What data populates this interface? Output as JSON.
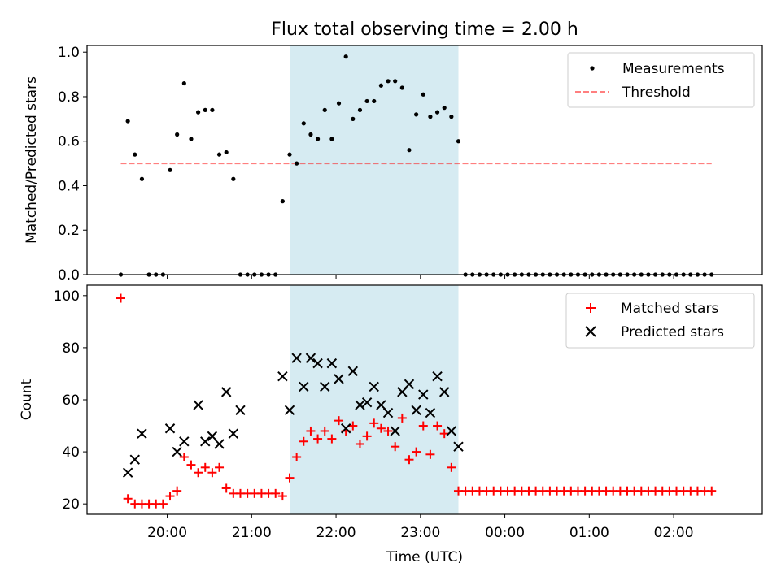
{
  "figure": {
    "title": "Flux total observing time = 2.00 h",
    "xlabel": "Time (UTC)"
  },
  "chart_data": [
    {
      "type": "scatter",
      "ylabel": "Matched/Predicted stars",
      "ylim": [
        0,
        1.03
      ],
      "yticks": [
        "0.0",
        "0.2",
        "0.4",
        "0.6",
        "0.8",
        "1.0"
      ],
      "highlight": {
        "start": "21:27",
        "end": "23:27",
        "color": "#add8e6"
      },
      "legend": {
        "placement": "top-right",
        "entries": [
          "Measurements",
          "Threshold"
        ]
      },
      "threshold": {
        "name": "Threshold",
        "value": 0.5,
        "x": [
          "19:27",
          "02:27"
        ],
        "color": "#ff0000"
      },
      "series": [
        {
          "name": "Measurements",
          "marker": "dot",
          "color": "#000000",
          "x": [
            "19:27",
            "19:32",
            "19:37",
            "19:42",
            "19:47",
            "19:52",
            "19:57",
            "20:02",
            "20:07",
            "20:12",
            "20:17",
            "20:22",
            "20:27",
            "20:32",
            "20:37",
            "20:42",
            "20:47",
            "20:52",
            "20:57",
            "21:02",
            "21:07",
            "21:12",
            "21:17",
            "21:22",
            "21:27",
            "21:32",
            "21:37",
            "21:42",
            "21:47",
            "21:52",
            "21:57",
            "22:02",
            "22:07",
            "22:12",
            "22:17",
            "22:22",
            "22:27",
            "22:32",
            "22:37",
            "22:42",
            "22:47",
            "22:52",
            "22:57",
            "23:02",
            "23:07",
            "23:12",
            "23:17",
            "23:22",
            "23:27",
            "23:32",
            "23:37",
            "23:42",
            "23:47",
            "23:52",
            "23:57",
            "00:02",
            "00:07",
            "00:12",
            "00:17",
            "00:22",
            "00:27",
            "00:32",
            "00:37",
            "00:42",
            "00:47",
            "00:52",
            "00:57",
            "01:02",
            "01:07",
            "01:12",
            "01:17",
            "01:22",
            "01:27",
            "01:32",
            "01:37",
            "01:42",
            "01:47",
            "01:52",
            "01:57",
            "02:02",
            "02:07",
            "02:12",
            "02:17",
            "02:22",
            "02:27"
          ],
          "y": [
            0,
            0.69,
            0.54,
            0.43,
            0,
            0,
            0,
            0.47,
            0.63,
            0.86,
            0.61,
            0.73,
            0.74,
            0.74,
            0.54,
            0.55,
            0.43,
            0,
            0,
            0,
            0,
            0,
            0,
            0.33,
            0.54,
            0.5,
            0.68,
            0.63,
            0.61,
            0.74,
            0.61,
            0.77,
            0.98,
            0.7,
            0.74,
            0.78,
            0.78,
            0.85,
            0.87,
            0.87,
            0.84,
            0.56,
            0.72,
            0.81,
            0.71,
            0.73,
            0.75,
            0.71,
            0.6,
            0,
            0,
            0,
            0,
            0,
            0,
            0,
            0,
            0,
            0,
            0,
            0,
            0,
            0,
            0,
            0,
            0,
            0,
            0,
            0,
            0,
            0,
            0,
            0,
            0,
            0,
            0,
            0,
            0,
            0,
            0,
            0,
            0,
            0,
            0,
            0
          ]
        }
      ]
    },
    {
      "type": "scatter",
      "ylabel": "Count",
      "ylim": [
        16,
        104
      ],
      "yticks": [
        "20",
        "40",
        "60",
        "80",
        "100"
      ],
      "xlim": [
        "19:03",
        "03:03"
      ],
      "xticks": [
        "20:00",
        "21:00",
        "22:00",
        "23:00",
        "00:00",
        "01:00",
        "02:00"
      ],
      "highlight": {
        "start": "21:27",
        "end": "23:27",
        "color": "#add8e6"
      },
      "legend": {
        "placement": "top-right",
        "entries": [
          "Matched stars",
          "Predicted stars"
        ]
      },
      "series": [
        {
          "name": "Matched stars",
          "marker": "plus",
          "color": "#ff0000",
          "x": [
            "19:27",
            "19:32",
            "19:37",
            "19:42",
            "19:47",
            "19:52",
            "19:57",
            "20:02",
            "20:07",
            "20:12",
            "20:17",
            "20:22",
            "20:27",
            "20:32",
            "20:37",
            "20:42",
            "20:47",
            "20:52",
            "20:57",
            "21:02",
            "21:07",
            "21:12",
            "21:17",
            "21:22",
            "21:27",
            "21:32",
            "21:37",
            "21:42",
            "21:47",
            "21:52",
            "21:57",
            "22:02",
            "22:07",
            "22:12",
            "22:17",
            "22:22",
            "22:27",
            "22:32",
            "22:37",
            "22:42",
            "22:47",
            "22:52",
            "22:57",
            "23:02",
            "23:07",
            "23:12",
            "23:17",
            "23:22",
            "23:27",
            "23:32",
            "23:37",
            "23:42",
            "23:47",
            "23:52",
            "23:57",
            "00:02",
            "00:07",
            "00:12",
            "00:17",
            "00:22",
            "00:27",
            "00:32",
            "00:37",
            "00:42",
            "00:47",
            "00:52",
            "00:57",
            "01:02",
            "01:07",
            "01:12",
            "01:17",
            "01:22",
            "01:27",
            "01:32",
            "01:37",
            "01:42",
            "01:47",
            "01:52",
            "01:57",
            "02:02",
            "02:07",
            "02:12",
            "02:17",
            "02:22",
            "02:27"
          ],
          "y": [
            99,
            22,
            20,
            20,
            20,
            20,
            20,
            23,
            25,
            38,
            35,
            32,
            34,
            32,
            34,
            26,
            24,
            24,
            24,
            24,
            24,
            24,
            24,
            23,
            30,
            38,
            44,
            48,
            45,
            48,
            45,
            52,
            48,
            50,
            43,
            46,
            51,
            49,
            48,
            42,
            53,
            37,
            40,
            50,
            39,
            50,
            47,
            34,
            25,
            25,
            25,
            25,
            25,
            25,
            25,
            25,
            25,
            25,
            25,
            25,
            25,
            25,
            25,
            25,
            25,
            25,
            25,
            25,
            25,
            25,
            25,
            25,
            25,
            25,
            25,
            25,
            25,
            25,
            25,
            25,
            25,
            25,
            25,
            25,
            25
          ]
        },
        {
          "name": "Predicted stars",
          "marker": "x",
          "color": "#000000",
          "x": [
            "19:32",
            "19:37",
            "19:42",
            "20:02",
            "20:07",
            "20:12",
            "20:22",
            "20:27",
            "20:32",
            "20:37",
            "20:42",
            "20:47",
            "20:52",
            "21:22",
            "21:27",
            "21:32",
            "21:37",
            "21:42",
            "21:47",
            "21:52",
            "21:57",
            "22:02",
            "22:07",
            "22:12",
            "22:17",
            "22:22",
            "22:27",
            "22:32",
            "22:37",
            "22:42",
            "22:47",
            "22:52",
            "22:57",
            "23:02",
            "23:07",
            "23:12",
            "23:17",
            "23:22",
            "23:27"
          ],
          "y": [
            32,
            37,
            47,
            49,
            40,
            44,
            58,
            44,
            46,
            43,
            63,
            47,
            56,
            69,
            56,
            76,
            65,
            76,
            74,
            65,
            74,
            68,
            49,
            71,
            58,
            59,
            65,
            58,
            55,
            48,
            63,
            66,
            56,
            62,
            55,
            69,
            63,
            48,
            42
          ]
        }
      ]
    }
  ]
}
